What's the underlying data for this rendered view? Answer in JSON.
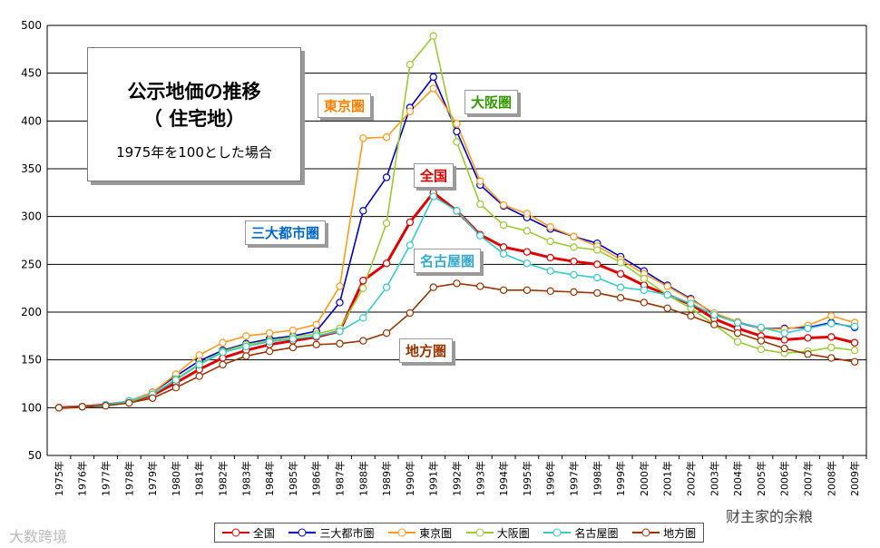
{
  "chart_data": {
    "type": "line",
    "title": "公示地価の推移",
    "subtitle": "（ 住宅地）",
    "note": "1975年を100とした場合",
    "x": [
      "1975年",
      "1976年",
      "1977年",
      "1978年",
      "1979年",
      "1980年",
      "1981年",
      "1982年",
      "1983年",
      "1984年",
      "1985年",
      "1986年",
      "1987年",
      "1988年",
      "1989年",
      "1990年",
      "1991年",
      "1992年",
      "1993年",
      "1994年",
      "1995年",
      "1996年",
      "1997年",
      "1998年",
      "1999年",
      "2000年",
      "2001年",
      "2002年",
      "2003年",
      "2004年",
      "2005年",
      "2006年",
      "2007年",
      "2008年",
      "2009年"
    ],
    "yticks": [
      50,
      100,
      150,
      200,
      250,
      300,
      350,
      400,
      450,
      500
    ],
    "ylim": [
      50,
      500
    ],
    "grid": true,
    "legend_position": "bottom",
    "series": [
      {
        "name": "全国",
        "color": "#e00000",
        "values": [
          100,
          101,
          103,
          106,
          113,
          126,
          140,
          152,
          160,
          166,
          170,
          174,
          180,
          233,
          251,
          294,
          325,
          306,
          281,
          268,
          263,
          257,
          253,
          250,
          240,
          228,
          218,
          208,
          193,
          183,
          175,
          171,
          173,
          174,
          168
        ]
      },
      {
        "name": "三大都市圏",
        "color": "#0000cc",
        "values": [
          100,
          101,
          103,
          107,
          116,
          133,
          149,
          160,
          167,
          172,
          175,
          180,
          210,
          306,
          341,
          414,
          446,
          389,
          333,
          311,
          299,
          287,
          279,
          272,
          258,
          243,
          228,
          214,
          198,
          189,
          183,
          183,
          184,
          189,
          184
        ]
      },
      {
        "name": "東京圏",
        "color": "#ff9a1a",
        "values": [
          100,
          101,
          103,
          107,
          116,
          135,
          155,
          168,
          175,
          178,
          181,
          187,
          227,
          382,
          383,
          410,
          434,
          397,
          337,
          312,
          303,
          289,
          279,
          269,
          255,
          240,
          227,
          213,
          199,
          190,
          183,
          182,
          186,
          196,
          189
        ]
      },
      {
        "name": "大阪圏",
        "color": "#99cc33",
        "values": [
          100,
          101,
          103,
          106,
          114,
          130,
          146,
          159,
          166,
          170,
          174,
          177,
          183,
          225,
          293,
          459,
          489,
          378,
          313,
          291,
          285,
          274,
          268,
          265,
          252,
          235,
          218,
          204,
          187,
          169,
          161,
          157,
          159,
          163,
          160
        ]
      },
      {
        "name": "名古屋圏",
        "color": "#33cccc",
        "values": [
          100,
          101,
          103,
          107,
          114,
          129,
          145,
          158,
          164,
          169,
          172,
          175,
          180,
          194,
          226,
          270,
          321,
          306,
          280,
          261,
          251,
          243,
          239,
          236,
          226,
          223,
          218,
          209,
          197,
          189,
          184,
          178,
          183,
          188,
          185
        ]
      },
      {
        "name": "地方圏",
        "color": "#993300",
        "values": [
          100,
          101,
          102,
          105,
          110,
          121,
          133,
          145,
          154,
          159,
          163,
          166,
          167,
          170,
          178,
          199,
          226,
          230,
          227,
          223,
          223,
          222,
          221,
          220,
          215,
          210,
          204,
          196,
          187,
          178,
          170,
          162,
          156,
          152,
          148
        ]
      }
    ],
    "annotations": [
      {
        "text": "東京圏",
        "color": "#ff8000"
      },
      {
        "text": "大阪圏",
        "color": "#339900"
      },
      {
        "text": "全国",
        "color": "#e00000"
      },
      {
        "text": "三大都市圏",
        "color": "#0066cc"
      },
      {
        "text": "名古屋圏",
        "color": "#33aacc"
      },
      {
        "text": "地方圏",
        "color": "#993300"
      }
    ]
  },
  "watermarks": {
    "left": "大数跨境",
    "right": "财主家的余粮"
  }
}
